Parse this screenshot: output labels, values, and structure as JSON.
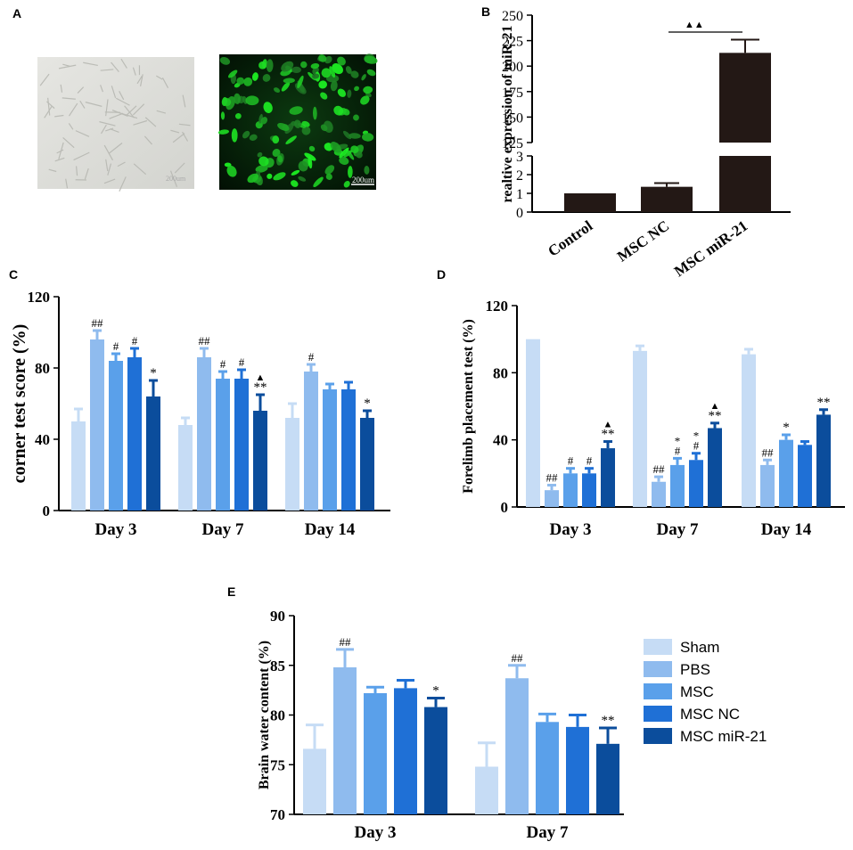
{
  "panels": {
    "A": {
      "letter": "A",
      "scale_bar_left": "200um",
      "scale_bar_right": "200um"
    },
    "B": {
      "letter": "B"
    },
    "C": {
      "letter": "C"
    },
    "D": {
      "letter": "D"
    },
    "E": {
      "letter": "E"
    }
  },
  "colors": {
    "Sham": "#c6dcf5",
    "PBS": "#8fbbee",
    "MSC": "#5aa0ea",
    "MSC NC": "#1f70d6",
    "MSC miR-21": "#0b4d9c",
    "panelB_bar": "#231815",
    "axis": "#000000"
  },
  "legend": {
    "items": [
      "Sham",
      "PBS",
      "MSC",
      "MSC NC",
      "MSC miR-21"
    ]
  },
  "chart_data": [
    {
      "panel": "B",
      "type": "bar",
      "categories": [
        "Control",
        "MSC NC",
        "MSC miR-21"
      ],
      "values": [
        1.0,
        1.35,
        213
      ],
      "errors": [
        0,
        0.2,
        13
      ],
      "ylabel": "realtive expression of miR-21",
      "yaxis_broken": true,
      "lower_range": [
        0,
        3
      ],
      "lower_ticks": [
        "0",
        "1",
        "2",
        "3"
      ],
      "upper_range": [
        125,
        250
      ],
      "upper_ticks": [
        "125",
        "150",
        "175",
        "200",
        "225",
        "250"
      ],
      "annotations": [
        {
          "between": [
            "MSC NC",
            "MSC miR-21"
          ],
          "label": "▲▲"
        }
      ]
    },
    {
      "panel": "C",
      "type": "bar",
      "categories": [
        "Day 3",
        "Day 7",
        "Day 14"
      ],
      "series": [
        {
          "name": "Sham",
          "values": [
            50,
            48,
            52
          ],
          "errors": [
            7,
            4,
            8
          ],
          "labels": [
            "",
            "",
            ""
          ]
        },
        {
          "name": "PBS",
          "values": [
            96,
            86,
            78
          ],
          "errors": [
            5,
            5,
            4
          ],
          "labels": [
            "##",
            "##",
            "#"
          ]
        },
        {
          "name": "MSC",
          "values": [
            84,
            74,
            68
          ],
          "errors": [
            4,
            4,
            3
          ],
          "labels": [
            "#",
            "#",
            ""
          ]
        },
        {
          "name": "MSC NC",
          "values": [
            86,
            74,
            68
          ],
          "errors": [
            5,
            5,
            4
          ],
          "labels": [
            "#",
            "#",
            ""
          ]
        },
        {
          "name": "MSC miR-21",
          "values": [
            64,
            56,
            52
          ],
          "errors": [
            9,
            9,
            4
          ],
          "labels": [
            "*",
            "**",
            "*"
          ],
          "top_marks": [
            "",
            "▲",
            ""
          ]
        }
      ],
      "ylabel": "corner test score (%)",
      "ylim": [
        0,
        120
      ],
      "yticks": [
        "0",
        "40",
        "80",
        "120"
      ]
    },
    {
      "panel": "D",
      "type": "bar",
      "categories": [
        "Day 3",
        "Day 7",
        "Day 14"
      ],
      "series": [
        {
          "name": "Sham",
          "values": [
            100,
            93,
            91
          ],
          "errors": [
            0,
            3,
            3
          ],
          "labels": [
            "",
            "",
            ""
          ]
        },
        {
          "name": "PBS",
          "values": [
            10,
            15,
            25
          ],
          "errors": [
            3,
            3,
            3
          ],
          "labels": [
            "##",
            "##",
            "##"
          ]
        },
        {
          "name": "MSC",
          "values": [
            20,
            25,
            40
          ],
          "errors": [
            3,
            4,
            3
          ],
          "labels": [
            "#",
            "*#",
            "*"
          ]
        },
        {
          "name": "MSC NC",
          "values": [
            20,
            28,
            37
          ],
          "errors": [
            3,
            4,
            2
          ],
          "labels": [
            "#",
            "*#",
            ""
          ]
        },
        {
          "name": "MSC miR-21",
          "values": [
            35,
            47,
            55
          ],
          "errors": [
            4,
            3,
            3
          ],
          "labels": [
            "**",
            "**",
            "**"
          ],
          "top_marks": [
            "▲",
            "▲",
            ""
          ]
        }
      ],
      "ylabel": "Forelimb placement test (%)",
      "ylim": [
        0,
        120
      ],
      "yticks": [
        "0",
        "40",
        "80",
        "120"
      ]
    },
    {
      "panel": "E",
      "type": "bar",
      "categories": [
        "Day 3",
        "Day 7"
      ],
      "series": [
        {
          "name": "Sham",
          "values": [
            76.6,
            74.8
          ],
          "errors": [
            2.4,
            2.4
          ],
          "labels": [
            "",
            ""
          ]
        },
        {
          "name": "PBS",
          "values": [
            84.8,
            83.7
          ],
          "errors": [
            1.8,
            1.3
          ],
          "labels": [
            "##",
            "##"
          ]
        },
        {
          "name": "MSC",
          "values": [
            82.2,
            79.3
          ],
          "errors": [
            0.6,
            0.8
          ],
          "labels": [
            "",
            ""
          ]
        },
        {
          "name": "MSC NC",
          "values": [
            82.7,
            78.8
          ],
          "errors": [
            0.8,
            1.2
          ],
          "labels": [
            "",
            ""
          ]
        },
        {
          "name": "MSC miR-21",
          "values": [
            80.8,
            77.1
          ],
          "errors": [
            0.9,
            1.6
          ],
          "labels": [
            "*",
            "**"
          ]
        }
      ],
      "ylabel": "Brain water content (%)",
      "ylim": [
        70,
        90
      ],
      "yticks": [
        "70",
        "75",
        "80",
        "85",
        "90"
      ]
    }
  ]
}
